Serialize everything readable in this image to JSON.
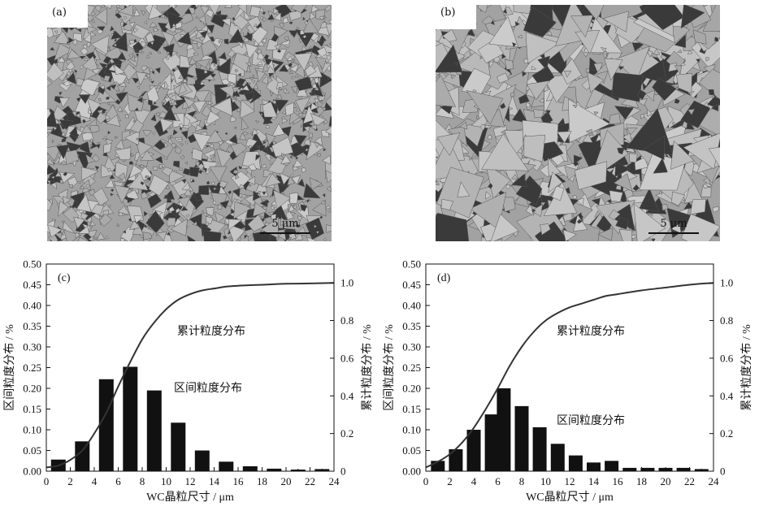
{
  "panels_micro": [
    {
      "label": "(a)",
      "scale_label": "5 μm"
    },
    {
      "label": "(b)",
      "scale_label": "5 μm"
    }
  ],
  "chart_data": [
    {
      "type": "bar",
      "panel_label": "(c)",
      "xlabel": "WC晶粒尺寸 / μm",
      "ylabel_left": "区间粒度分布 / %",
      "ylabel_right": "累计粒度分布 / %",
      "xlim": [
        0,
        24
      ],
      "ylim_left": [
        0,
        0.5
      ],
      "ylim_right": [
        0,
        1.1
      ],
      "xticks": [
        0,
        2,
        4,
        6,
        8,
        10,
        12,
        14,
        16,
        18,
        20,
        22,
        24
      ],
      "yticks_left": [
        0.0,
        0.05,
        0.1,
        0.15,
        0.2,
        0.25,
        0.3,
        0.35,
        0.4,
        0.45,
        0.5
      ],
      "yticks_right": [
        0,
        0.2,
        0.4,
        0.6,
        0.8,
        1.0
      ],
      "series": [
        {
          "name": "区间粒度分布",
          "x": [
            1,
            3,
            5,
            7,
            9,
            11,
            13,
            15,
            17,
            19,
            21,
            23
          ],
          "values": [
            0.028,
            0.072,
            0.222,
            0.252,
            0.195,
            0.117,
            0.05,
            0.023,
            0.012,
            0.006,
            0.004,
            0.005
          ]
        },
        {
          "name": "累计粒度分布",
          "x": [
            0,
            1,
            2,
            3,
            4,
            5,
            6,
            7,
            8,
            9,
            10,
            11,
            12,
            13,
            14,
            15,
            16,
            18,
            20,
            22,
            24
          ],
          "values": [
            0.02,
            0.03,
            0.06,
            0.11,
            0.2,
            0.31,
            0.45,
            0.58,
            0.7,
            0.79,
            0.86,
            0.91,
            0.94,
            0.96,
            0.97,
            0.98,
            0.985,
            0.99,
            0.995,
            0.997,
            1.0
          ]
        }
      ],
      "annotations": [
        "累计粒度分布",
        "区间粒度分布"
      ]
    },
    {
      "type": "bar",
      "panel_label": "(d)",
      "xlabel": "WC晶粒尺寸 / μm",
      "ylabel_left": "区间粒度分布 / %",
      "ylabel_right": "累计粒度分布 / %",
      "xlim": [
        0,
        24
      ],
      "ylim_left": [
        0,
        0.5
      ],
      "ylim_right": [
        0,
        1.1
      ],
      "xticks": [
        0,
        2,
        4,
        6,
        8,
        10,
        12,
        14,
        16,
        18,
        20,
        22,
        24
      ],
      "yticks_left": [
        0.0,
        0.05,
        0.1,
        0.15,
        0.2,
        0.25,
        0.3,
        0.35,
        0.4,
        0.45,
        0.5
      ],
      "yticks_right": [
        0,
        0.2,
        0.4,
        0.6,
        0.8,
        1.0
      ],
      "series": [
        {
          "name": "区间粒度分布",
          "x": [
            1,
            2.5,
            4,
            5.5,
            6.5,
            8,
            9.5,
            11,
            12.5,
            14,
            15.5,
            17,
            18.5,
            20,
            21.5,
            23
          ],
          "values": [
            0.025,
            0.053,
            0.1,
            0.137,
            0.2,
            0.157,
            0.106,
            0.066,
            0.038,
            0.021,
            0.025,
            0.008,
            0.008,
            0.008,
            0.008,
            0.005
          ]
        },
        {
          "name": "累计粒度分布",
          "x": [
            0,
            1,
            2,
            3,
            4,
            5,
            6,
            7,
            8,
            9,
            10,
            11,
            12,
            13,
            14,
            15,
            16,
            18,
            20,
            22,
            24
          ],
          "values": [
            0.02,
            0.05,
            0.09,
            0.15,
            0.23,
            0.33,
            0.44,
            0.56,
            0.66,
            0.74,
            0.8,
            0.84,
            0.87,
            0.89,
            0.91,
            0.93,
            0.94,
            0.96,
            0.975,
            0.99,
            1.0
          ]
        }
      ],
      "annotations": [
        "累计粒度分布",
        "区间粒度分布"
      ]
    }
  ]
}
